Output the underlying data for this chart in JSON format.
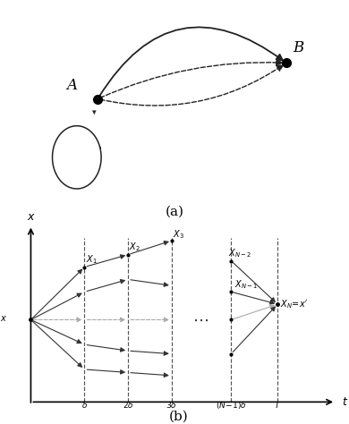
{
  "fig_width": 3.9,
  "fig_height": 4.74,
  "dpi": 100,
  "background": "#ffffff",
  "part_a_label": "(a)",
  "part_b_label": "(b)"
}
